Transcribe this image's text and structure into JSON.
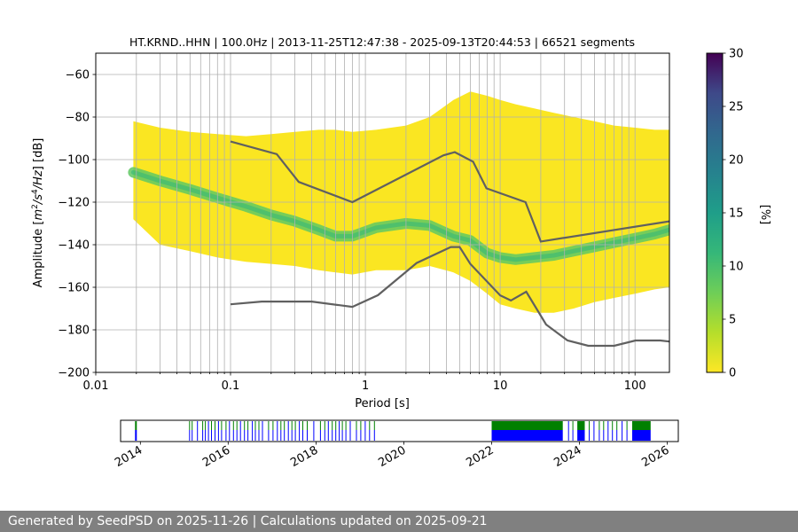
{
  "footer": {
    "text": "Generated by SeedPSD on 2025-11-26 | Calculations updated on 2025-09-21"
  },
  "chart_data": [
    {
      "type": "heatmap",
      "title": "HT.KRND..HHN | 100.0Hz | 2013-11-25T12:47:38 - 2025-09-13T20:44:53 | 66521 segments",
      "xlabel": "Period [s]",
      "ylabel_parts": [
        "Amplitude [",
        "m",
        "2",
        "/",
        "s",
        "4",
        "/",
        "Hz",
        "] [dB]"
      ],
      "xscale": "log",
      "xlim": [
        0.01,
        180
      ],
      "ylim": [
        -200,
        -50
      ],
      "x_ticks": [
        0.01,
        0.1,
        1,
        10,
        100
      ],
      "x_tick_labels": [
        "0.01",
        "0.1",
        "1",
        "10",
        "100"
      ],
      "y_ticks": [
        -200,
        -180,
        -160,
        -140,
        -120,
        -100,
        -80,
        -60
      ],
      "y_tick_labels": [
        "−200",
        "−180",
        "−160",
        "−140",
        "−120",
        "−100",
        "−80",
        "−60"
      ],
      "grid": true,
      "colorbar": {
        "label": "[%]",
        "range": [
          0,
          30
        ],
        "ticks": [
          0,
          5,
          10,
          15,
          20,
          25,
          30
        ],
        "tick_labels": [
          "0",
          "5",
          "10",
          "15",
          "20",
          "25",
          "30"
        ],
        "colormap": "viridis"
      },
      "mode_curve": {
        "period": [
          0.019,
          0.03,
          0.05,
          0.08,
          0.13,
          0.2,
          0.3,
          0.45,
          0.6,
          0.8,
          1.2,
          2,
          3,
          4.5,
          6,
          8,
          10,
          13,
          18,
          25,
          35,
          50,
          70,
          100,
          140,
          180
        ],
        "db": [
          -106,
          -110,
          -114,
          -118,
          -122,
          -126,
          -129,
          -133,
          -136,
          -136,
          -132,
          -130,
          -131,
          -136,
          -138,
          -144,
          -146,
          -147,
          -146,
          -145,
          -143,
          -141,
          -139,
          -137,
          -135,
          -133
        ]
      },
      "band_upper": {
        "period": [
          0.019,
          0.03,
          0.05,
          0.08,
          0.13,
          0.2,
          0.3,
          0.45,
          0.6,
          0.8,
          1.2,
          2,
          3,
          4.5,
          6,
          8,
          10,
          13,
          18,
          25,
          35,
          50,
          70,
          100,
          140,
          180
        ],
        "db": [
          -82,
          -85,
          -87,
          -88,
          -89,
          -88,
          -87,
          -86,
          -86,
          -87,
          -86,
          -84,
          -80,
          -72,
          -68,
          -70,
          -72,
          -74,
          -76,
          -78,
          -80,
          -82,
          -84,
          -85,
          -86,
          -86
        ]
      },
      "band_lower": {
        "period": [
          0.019,
          0.03,
          0.05,
          0.08,
          0.13,
          0.2,
          0.3,
          0.45,
          0.6,
          0.8,
          1.2,
          2,
          3,
          4.5,
          6,
          8,
          10,
          13,
          18,
          25,
          35,
          50,
          70,
          100,
          140,
          180
        ],
        "db": [
          -128,
          -140,
          -143,
          -146,
          -148,
          -149,
          -150,
          -152,
          -153,
          -154,
          -152,
          -152,
          -150,
          -153,
          -157,
          -163,
          -168,
          -170,
          -172,
          -172,
          -170,
          -167,
          -165,
          -163,
          -161,
          -160
        ]
      },
      "upper_noise_model": {
        "period": [
          0.1,
          0.22,
          0.32,
          0.8,
          3.8,
          4.6,
          6.3,
          7.9,
          15.4,
          20,
          180
        ],
        "db": [
          -91.5,
          -97.4,
          -110.5,
          -120,
          -98,
          -96.5,
          -101,
          -113.5,
          -120,
          -138.5,
          -129
        ]
      },
      "lower_noise_model": {
        "period": [
          0.1,
          0.17,
          0.4,
          0.8,
          1.24,
          2.4,
          4.3,
          5,
          6,
          10,
          12,
          15.6,
          21.9,
          31.6,
          45,
          70,
          101,
          154,
          180
        ],
        "db": [
          -168,
          -166.7,
          -166.7,
          -169.2,
          -163.7,
          -148.6,
          -141.1,
          -141.1,
          -149,
          -163.8,
          -166.2,
          -162.1,
          -177.5,
          -185,
          -187.5,
          -187.5,
          -185,
          -185,
          -185.5
        ]
      }
    },
    {
      "type": "timeline",
      "x_ticks": [
        2014,
        2016,
        2018,
        2020,
        2022,
        2024,
        2026
      ],
      "x_tick_labels": [
        "2014",
        "2016",
        "2018",
        "2020",
        "2022",
        "2024",
        "2026"
      ],
      "xlim": [
        2013.55,
        2026.25
      ],
      "blocks": [
        [
          2013.88,
          2013.92
        ],
        [
          2022.0,
          2023.62
        ],
        [
          2023.95,
          2024.12
        ],
        [
          2025.2,
          2025.62
        ]
      ],
      "ticks": [
        2015.12,
        2015.18,
        2015.3,
        2015.42,
        2015.48,
        2015.55,
        2015.62,
        2015.7,
        2015.78,
        2015.85,
        2015.95,
        2016.03,
        2016.12,
        2016.2,
        2016.28,
        2016.37,
        2016.45,
        2016.55,
        2016.62,
        2016.7,
        2016.78,
        2016.92,
        2017.02,
        2017.12,
        2017.2,
        2017.28,
        2017.37,
        2017.45,
        2017.53,
        2017.62,
        2017.7,
        2017.8,
        2017.95,
        2018.1,
        2018.2,
        2018.28,
        2018.37,
        2018.45,
        2018.53,
        2018.6,
        2018.68,
        2018.78,
        2018.92,
        2019.02,
        2019.12,
        2019.22,
        2019.33,
        2023.75,
        2023.85,
        2024.22,
        2024.33,
        2024.45,
        2024.55,
        2024.65,
        2024.75,
        2024.85,
        2024.97,
        2025.08
      ],
      "series_colors": {
        "upper": "#008000",
        "lower": "#0000ff"
      }
    }
  ]
}
